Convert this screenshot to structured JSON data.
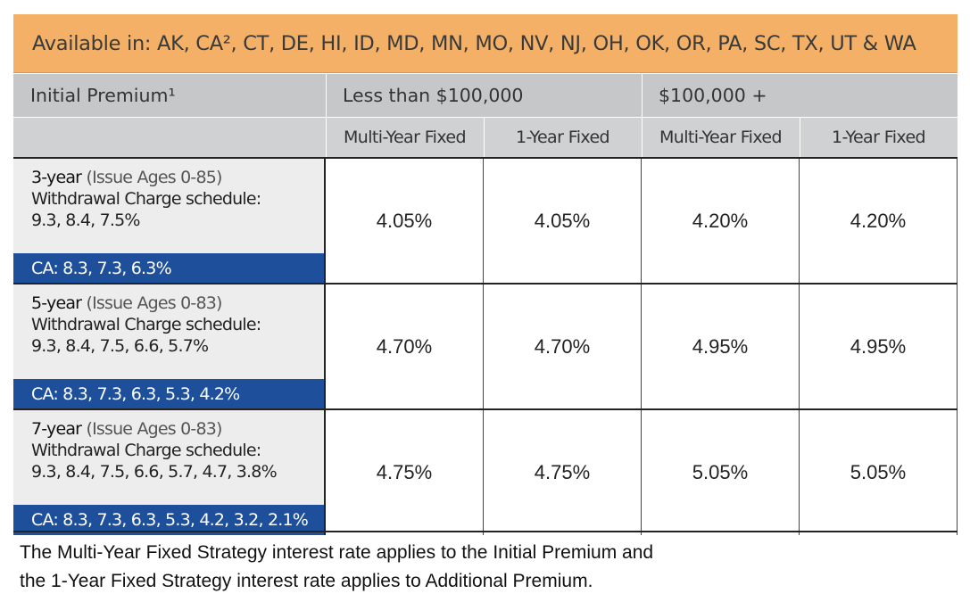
{
  "banner": {
    "text": "Available in: AK, CA², CT, DE, HI, ID, MD, MN, MO, NV, NJ, OH, OK, OR, PA, SC, TX, UT & WA"
  },
  "header": {
    "premium_label": "Initial Premium¹",
    "group_low": "Less than $100,000",
    "group_high": "$100,000 +",
    "columns": [
      "Multi-Year Fixed",
      "1-Year Fixed",
      "Multi-Year Fixed",
      "1-Year Fixed"
    ]
  },
  "rows": [
    {
      "term": "3-year",
      "ages": "(Issue Ages 0-85)",
      "schedule_label": "Withdrawal Charge schedule:",
      "schedule": "9.3, 8.4, 7.5%",
      "ca": "CA: 8.3, 7.3, 6.3%",
      "rates": [
        "4.05%",
        "4.05%",
        "4.20%",
        "4.20%"
      ]
    },
    {
      "term": "5-year",
      "ages": "(Issue Ages 0-83)",
      "schedule_label": "Withdrawal Charge schedule:",
      "schedule": "9.3, 8.4, 7.5, 6.6, 5.7%",
      "ca": "CA: 8.3, 7.3, 6.3, 5.3, 4.2%",
      "rates": [
        "4.70%",
        "4.70%",
        "4.95%",
        "4.95%"
      ]
    },
    {
      "term": "7-year",
      "ages": "(Issue Ages 0-83)",
      "schedule_label": "Withdrawal Charge schedule:",
      "schedule": "9.3, 8.4, 7.5, 6.6, 5.7, 4.7, 3.8%",
      "ca": "CA: 8.3, 7.3, 6.3, 5.3, 4.2, 3.2, 2.1%",
      "rates": [
        "4.75%",
        "4.75%",
        "5.05%",
        "5.05%"
      ]
    }
  ],
  "footnote": {
    "line1": "The Multi-Year Fixed Strategy interest rate applies to the Initial Premium and",
    "line2": "the 1-Year Fixed Strategy interest rate applies to Additional Premium."
  },
  "colors": {
    "banner": "#f3b066",
    "header": "#c6c7c9",
    "ca_band": "#1d4f9a",
    "label_bg": "#ededed"
  }
}
